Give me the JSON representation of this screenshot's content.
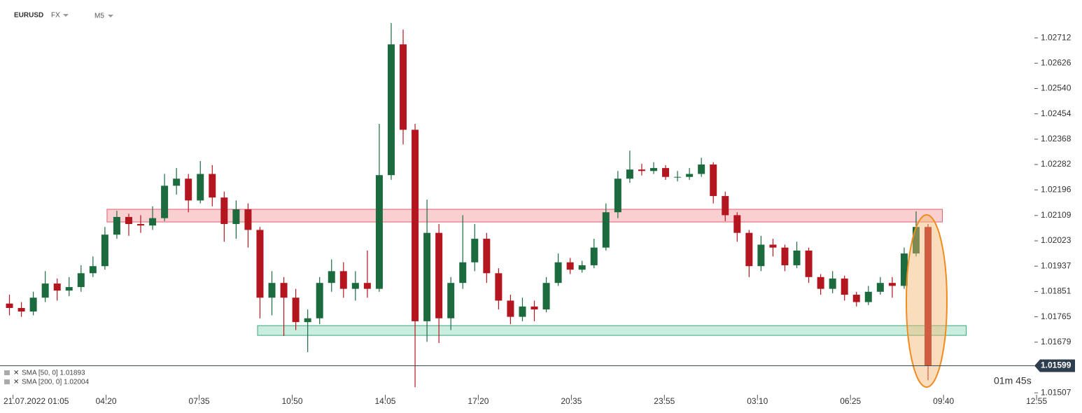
{
  "chart_data": {
    "type": "candlestick",
    "symbol": "EURUSD",
    "market": "FX",
    "interval": "M5",
    "indicators": [
      "SMA  [50,  0]  1.01893",
      "SMA  [200,  0]  1.02004"
    ],
    "countdown": "01m 45s",
    "last_price": 1.01599,
    "up_color": "#1c6b3f",
    "down_color": "#b3161f",
    "ylim": [
      1.01486,
      1.02793
    ],
    "yticks": [
      1.02712,
      1.02626,
      {
        "value": 1.0254,
        "label": "1.02540"
      },
      1.02454,
      1.02368,
      1.02282,
      1.02196,
      1.02109,
      1.02023,
      1.01937,
      1.01851,
      1.01765,
      1.01679,
      1.01507
    ],
    "xlim": [
      0,
      440
    ],
    "xticks": [
      {
        "value": 4,
        "label": "21.07.2022  01:05"
      },
      {
        "value": 43,
        "label": "04:20"
      },
      {
        "value": 82,
        "label": "07:35"
      },
      {
        "value": 121,
        "label": "10:50"
      },
      {
        "value": 160,
        "label": "14:05"
      },
      {
        "value": 199,
        "label": "17:20"
      },
      {
        "value": 238,
        "label": "20:35"
      },
      {
        "value": 277,
        "label": "23:55"
      },
      {
        "value": 316,
        "label": "03:10"
      },
      {
        "value": 355,
        "label": "06:25"
      },
      {
        "value": 394,
        "label": "09:40"
      },
      {
        "value": 433,
        "label": "12:55"
      }
    ],
    "zones": [
      {
        "x": [
          43.4,
          393.5
        ],
        "y": [
          1.02087,
          1.0213
        ],
        "fill": "#f9cfd1",
        "stroke": "#e0606c"
      },
      {
        "x": [
          106.5,
          403.5
        ],
        "y": [
          1.01702,
          1.01735
        ],
        "fill": "#c9eee0",
        "stroke": "#3aa77a"
      }
    ],
    "candles": {
      "open": [
        1.0181,
        1.01795,
        1.01783,
        1.0183,
        1.01878,
        1.01854,
        1.01866,
        1.01913,
        1.01937,
        1.02044,
        1.02104,
        1.0208,
        1.02075,
        1.021,
        1.0221,
        1.02234,
        1.0216,
        1.0225,
        1.0217,
        1.0208,
        1.0213,
        1.0206,
        1.0183,
        1.0188,
        1.0183,
        1.01747,
        1.0176,
        1.0188,
        1.0192,
        1.0186,
        1.0188,
        1.0186,
        1.02246,
        1.0269,
        1.024,
        1.0175,
        1.0205,
        1.0176,
        1.0188,
        1.0195,
        1.0203,
        1.01913,
        1.0182,
        1.01765,
        1.018,
        1.0179,
        1.0188,
        1.0195,
        1.01925,
        1.0194,
        1.02,
        1.0212,
        1.02234,
        1.02265,
        1.0226,
        1.0227,
        1.0224,
        1.0224,
        1.0225,
        1.02282,
        1.02175,
        1.0211,
        1.0205,
        1.01937,
        1.0201,
        1.02,
        1.0194,
        1.0199,
        1.019,
        1.0186,
        1.01895,
        1.0184,
        1.01815,
        1.0185,
        1.0188,
        1.0187,
        1.0198,
        1.0207
      ],
      "high": [
        1.0184,
        1.01815,
        1.0185,
        1.0192,
        1.01895,
        1.019,
        1.0194,
        1.0197,
        1.0207,
        1.02125,
        1.02115,
        1.0211,
        1.0214,
        1.0225,
        1.0227,
        1.0225,
        1.02294,
        1.0228,
        1.0219,
        1.0216,
        1.0215,
        1.0207,
        1.0192,
        1.019,
        1.0186,
        1.0179,
        1.019,
        1.0196,
        1.0195,
        1.0192,
        1.0199,
        1.0242,
        1.02762,
        1.0274,
        1.0242,
        1.02163,
        1.0208,
        1.019,
        1.0211,
        1.0208,
        1.0205,
        1.0193,
        1.0184,
        1.0183,
        1.0182,
        1.019,
        1.0198,
        1.01965,
        1.01955,
        1.0203,
        1.0215,
        1.0226,
        1.02329,
        1.02285,
        1.0229,
        1.0228,
        1.0226,
        1.0227,
        1.02305,
        1.0229,
        1.0219,
        1.0212,
        1.0206,
        1.0204,
        1.0203,
        1.0201,
        1.0202,
        1.02,
        1.0191,
        1.0192,
        1.01905,
        1.0185,
        1.0187,
        1.019,
        1.019,
        1.02,
        1.02123,
        1.0208
      ],
      "low": [
        1.0177,
        1.01765,
        1.0177,
        1.01815,
        1.0182,
        1.01835,
        1.0185,
        1.019,
        1.01925,
        1.0203,
        1.0204,
        1.0205,
        1.0206,
        1.0209,
        1.0218,
        1.0212,
        1.0215,
        1.0214,
        1.0202,
        1.0203,
        1.02,
        1.0176,
        1.0177,
        1.017,
        1.0172,
        1.01645,
        1.0174,
        1.0185,
        1.0183,
        1.0182,
        1.0183,
        1.0185,
        1.0223,
        1.0235,
        1.01526,
        1.0168,
        1.01676,
        1.0172,
        1.0186,
        1.0192,
        1.0188,
        1.0179,
        1.0174,
        1.0175,
        1.0175,
        1.0178,
        1.0187,
        1.0191,
        1.01915,
        1.0193,
        1.0199,
        1.021,
        1.0222,
        1.02245,
        1.0225,
        1.0223,
        1.02225,
        1.0223,
        1.0224,
        1.0215,
        1.0209,
        1.0202,
        1.019,
        1.0192,
        1.0197,
        1.0192,
        1.0193,
        1.0188,
        1.0184,
        1.01845,
        1.0182,
        1.018,
        1.01805,
        1.0184,
        1.0183,
        1.0186,
        1.0197,
        1.0155
      ],
      "close": [
        1.01795,
        1.01783,
        1.0183,
        1.01878,
        1.01854,
        1.01866,
        1.01913,
        1.01937,
        1.02044,
        1.02104,
        1.0208,
        1.02075,
        1.021,
        1.0221,
        1.02234,
        1.0216,
        1.0225,
        1.0217,
        1.0208,
        1.0213,
        1.0206,
        1.0183,
        1.0188,
        1.0183,
        1.01747,
        1.0176,
        1.0188,
        1.0192,
        1.0186,
        1.0188,
        1.0186,
        1.02246,
        1.0269,
        1.024,
        1.0175,
        1.0205,
        1.0176,
        1.0188,
        1.0195,
        1.0203,
        1.01913,
        1.0182,
        1.01765,
        1.018,
        1.0179,
        1.0188,
        1.0195,
        1.01925,
        1.0194,
        1.02,
        1.0212,
        1.02234,
        1.02265,
        1.0226,
        1.0227,
        1.0224,
        1.0224,
        1.0225,
        1.02282,
        1.02175,
        1.0211,
        1.0205,
        1.01937,
        1.0201,
        1.02,
        1.0194,
        1.0199,
        1.019,
        1.0186,
        1.01895,
        1.0184,
        1.01815,
        1.0185,
        1.0188,
        1.0187,
        1.0198,
        1.0207,
        1.01599
      ]
    }
  }
}
